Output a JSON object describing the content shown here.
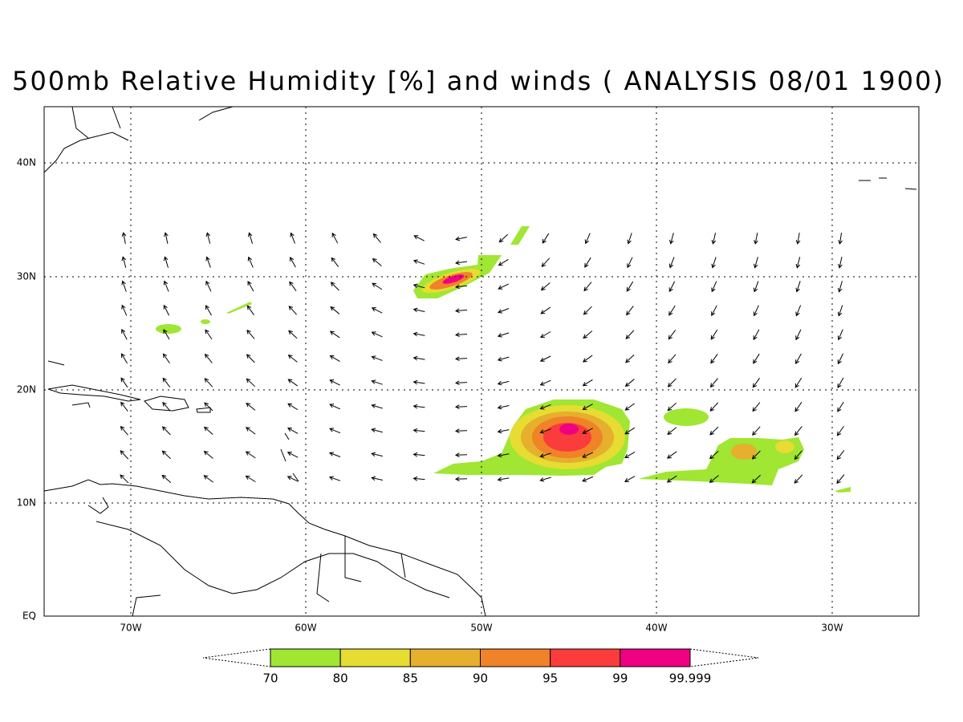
{
  "title": "500mb Relative Humidity [%] and winds ( ANALYSIS 08/01 1900)",
  "map": {
    "lat_labels": [
      "40N",
      "30N",
      "20N",
      "10N",
      "EQ"
    ],
    "lon_labels": [
      "70W",
      "60W",
      "50W",
      "40W",
      "30W"
    ]
  },
  "colorbar": {
    "levels": [
      70,
      80,
      85,
      90,
      95,
      99,
      99.999
    ],
    "colors": [
      "#a0e632",
      "#e6dc32",
      "#e6af2d",
      "#f08228",
      "#fa3c3c",
      "#f00082"
    ]
  }
}
